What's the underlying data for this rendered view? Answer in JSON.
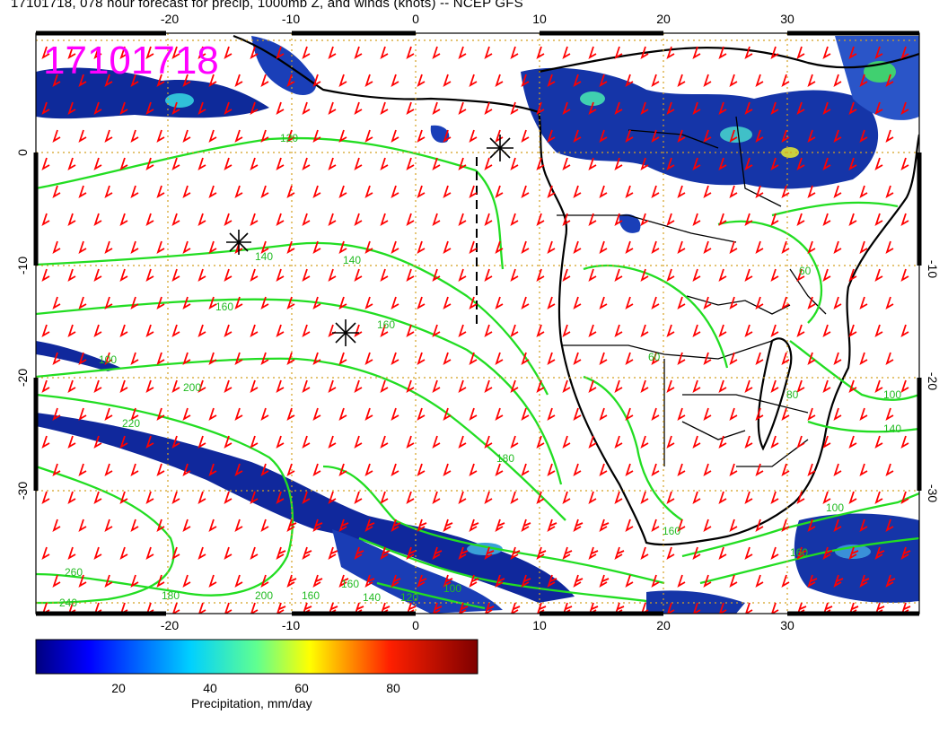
{
  "header": {
    "title": "17101718, 078 hour forecast for precip, 1000mb Z, and winds (knots) -- NCEP GFS",
    "stamp": "17101718"
  },
  "colors": {
    "land_outline": "#000000",
    "contour": "#22dd22",
    "wind_barb": "#ff0000",
    "stamp": "#ff00ff",
    "grid": "#d4a020",
    "precip_low": "#0a1a8a",
    "precip_mid": "#22c8d8",
    "precip_high": "#c01010"
  },
  "axes": {
    "lon_ticks": [
      "-20",
      "-10",
      "0",
      "10",
      "20",
      "30"
    ],
    "lat_ticks": [
      "0",
      "-10",
      "-20",
      "-30"
    ],
    "lon_range": [
      -30,
      41
    ],
    "lat_range": [
      -40,
      10
    ]
  },
  "contour_labels": [
    "120",
    "140",
    "140",
    "160",
    "160",
    "160",
    "180",
    "200",
    "200",
    "220",
    "260",
    "240",
    "180",
    "160",
    "160",
    "140",
    "120",
    "100",
    "100",
    "80",
    "60",
    "60",
    "100",
    "140",
    "160",
    "100"
  ],
  "colorbar": {
    "tick_labels": [
      "20",
      "40",
      "60",
      "80"
    ],
    "tick_values": [
      20,
      40,
      60,
      80
    ],
    "range": [
      0,
      100
    ],
    "label": "Precipitation, mm/day"
  }
}
